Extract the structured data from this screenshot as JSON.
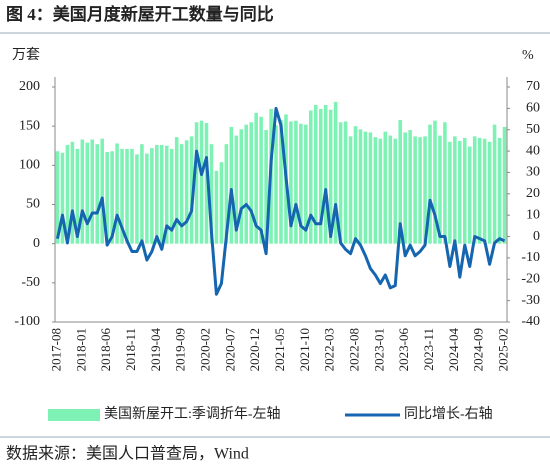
{
  "chart_data": {
    "type": "bar_line",
    "title": "图 4：美国月度新屋开工数量与同比",
    "y_label": "万套",
    "y2_label": "%",
    "source": "数据来源：美国人口普查局，Wind",
    "categories": [
      "2017-08",
      null,
      null,
      null,
      null,
      "2018-01",
      null,
      null,
      null,
      null,
      "2018-06",
      null,
      null,
      null,
      null,
      "2018-11",
      null,
      null,
      null,
      null,
      "2019-04",
      null,
      null,
      null,
      null,
      "2019-09",
      null,
      null,
      null,
      null,
      "2020-02",
      null,
      null,
      null,
      null,
      "2020-07",
      null,
      null,
      null,
      null,
      "2020-12",
      null,
      null,
      null,
      null,
      "2021-05",
      null,
      null,
      null,
      null,
      "2021-10",
      null,
      null,
      null,
      null,
      "2022-03",
      null,
      null,
      null,
      null,
      "2022-08",
      null,
      null,
      null,
      null,
      "2023-01",
      null,
      null,
      null,
      null,
      "2023-06",
      null,
      null,
      null,
      null,
      "2023-11",
      null,
      null,
      null,
      null,
      "2024-04",
      null,
      null,
      null,
      null,
      "2024-09",
      null,
      null,
      null,
      null,
      "2025-02"
    ],
    "series": [
      {
        "name": "美国新屋开工:季调折年-左轴",
        "color": "#7ef2b4",
        "kind": "bar",
        "values": [
          118,
          116,
          126,
          130,
          121,
          133,
          129,
          133,
          127,
          134,
          117,
          118,
          128,
          121,
          121,
          121,
          114,
          127,
          115,
          122,
          126,
          126,
          125,
          121,
          136,
          127,
          132,
          137,
          155,
          157,
          154,
          127,
          93,
          104,
          127,
          149,
          138,
          146,
          152,
          155,
          167,
          162,
          145,
          172,
          151,
          158,
          165,
          156,
          157,
          153,
          152,
          170,
          177,
          172,
          177,
          171,
          181,
          155,
          156,
          137,
          150,
          146,
          143,
          142,
          136,
          134,
          143,
          138,
          134,
          158,
          142,
          145,
          137,
          136,
          137,
          152,
          157,
          138,
          155,
          130,
          137,
          131,
          135,
          124,
          137,
          135,
          134,
          130,
          152,
          135,
          149
        ]
      },
      {
        "name": "同比增长-右轴",
        "color": "#1565b0",
        "kind": "line",
        "axis": "y2",
        "values": [
          -1,
          10,
          -3,
          12,
          0,
          12,
          6,
          11,
          11,
          18,
          -4,
          0,
          10,
          4,
          -2,
          -7,
          -7,
          -2,
          -11,
          -7,
          0,
          -6,
          5,
          3,
          8,
          5,
          7,
          12,
          40,
          29,
          37,
          2,
          -27,
          -22,
          0,
          22,
          3,
          13,
          15,
          12,
          5,
          3,
          -8,
          35,
          60,
          52,
          28,
          5,
          15,
          5,
          3,
          10,
          6,
          6,
          22,
          0,
          15,
          -3,
          -6,
          -8,
          -1,
          -4,
          -9,
          -15,
          -18,
          -22,
          -18,
          -24,
          -23,
          6,
          -9,
          -4,
          -9,
          -7,
          -4,
          17,
          10,
          0,
          0,
          -14,
          -2,
          -19,
          -4,
          -14,
          0,
          -1,
          -2,
          -13,
          -3,
          -1,
          -2
        ]
      }
    ],
    "ylim": [
      -100,
      200
    ],
    "yticks": [
      -100,
      -50,
      0,
      50,
      100,
      150,
      200
    ],
    "y2lim": [
      -40,
      70
    ],
    "y2ticks": [
      -40,
      -30,
      -20,
      -10,
      0,
      10,
      20,
      30,
      40,
      50,
      60,
      70
    ],
    "legend": "bottom"
  }
}
